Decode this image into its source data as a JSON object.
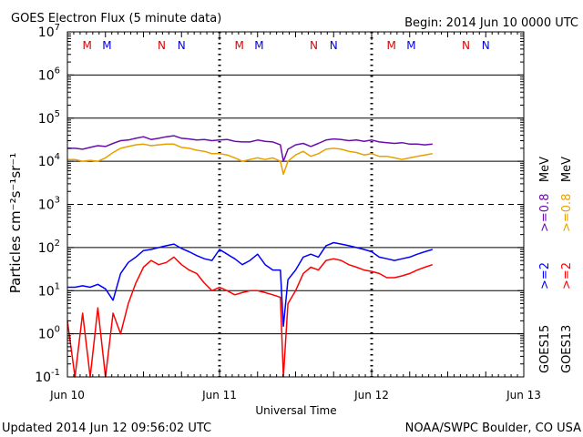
{
  "chart_data": {
    "type": "line",
    "title": "GOES Electron Flux (5 minute data)",
    "begin_label": "Begin: 2014 Jun 10 0000 UTC",
    "xlabel": "Universal Time",
    "ylabel": "Particles cm⁻²s⁻¹sr⁻¹",
    "x_ticks": [
      "Jun 10",
      "Jun 11",
      "Jun 12",
      "Jun 13"
    ],
    "y_scale": "log",
    "ylim": [
      0.1,
      10000000
    ],
    "y_tick_labels": [
      {
        "base": "10",
        "exp": "-1"
      },
      {
        "base": "10",
        "exp": "0"
      },
      {
        "base": "10",
        "exp": "1"
      },
      {
        "base": "10",
        "exp": "2"
      },
      {
        "base": "10",
        "exp": "3"
      },
      {
        "base": "10",
        "exp": "4"
      },
      {
        "base": "10",
        "exp": "5"
      },
      {
        "base": "10",
        "exp": "6"
      },
      {
        "base": "10",
        "exp": "7"
      }
    ],
    "markers": [
      {
        "label": "M",
        "day": 0.13,
        "color": "#e00000"
      },
      {
        "label": "M",
        "day": 0.26,
        "color": "#0000e0"
      },
      {
        "label": "N",
        "day": 0.62,
        "color": "#e00000"
      },
      {
        "label": "N",
        "day": 0.75,
        "color": "#0000e0"
      },
      {
        "label": "M",
        "day": 1.13,
        "color": "#e00000"
      },
      {
        "label": "M",
        "day": 1.26,
        "color": "#0000e0"
      },
      {
        "label": "N",
        "day": 1.62,
        "color": "#e00000"
      },
      {
        "label": "N",
        "day": 1.75,
        "color": "#0000e0"
      },
      {
        "label": "M",
        "day": 2.13,
        "color": "#e00000"
      },
      {
        "label": "M",
        "day": 2.26,
        "color": "#0000e0"
      },
      {
        "label": "N",
        "day": 2.62,
        "color": "#e00000"
      },
      {
        "label": "N",
        "day": 2.75,
        "color": "#0000e0"
      }
    ],
    "legend": {
      "placement": "right",
      "units": "MeV",
      "goes15": "GOES15",
      "goes13": "GOES13",
      "entries": [
        {
          "label": ">=0.8",
          "color": "#6a0dad",
          "group": "high"
        },
        {
          "label": ">=0.8",
          "color": "#e8a000",
          "group": "high"
        },
        {
          "label": ">=2",
          "color": "#0000ff",
          "group": "low"
        },
        {
          "label": ">=2",
          "color": "#ff0000",
          "group": "low"
        }
      ]
    },
    "series": [
      {
        "name": "GOES15 >=0.8 MeV",
        "color": "#6a0dad",
        "x": [
          0.0,
          0.05,
          0.1,
          0.15,
          0.2,
          0.25,
          0.3,
          0.35,
          0.4,
          0.45,
          0.5,
          0.55,
          0.6,
          0.65,
          0.7,
          0.75,
          0.8,
          0.85,
          0.9,
          0.95,
          1.0,
          1.05,
          1.1,
          1.15,
          1.2,
          1.25,
          1.3,
          1.35,
          1.4,
          1.42,
          1.45,
          1.5,
          1.55,
          1.6,
          1.65,
          1.7,
          1.75,
          1.8,
          1.85,
          1.9,
          1.95,
          2.0,
          2.05,
          2.1,
          2.15,
          2.2,
          2.25,
          2.3,
          2.35,
          2.4
        ],
        "y": [
          20000,
          20000,
          19000,
          21000,
          23000,
          22000,
          26000,
          30000,
          31000,
          34000,
          37000,
          32000,
          34000,
          37000,
          39000,
          34000,
          33000,
          31000,
          32000,
          30000,
          31000,
          32000,
          29000,
          28000,
          28000,
          31000,
          29000,
          28000,
          24000,
          10000,
          19000,
          24000,
          26000,
          22000,
          26000,
          31000,
          33000,
          32000,
          30000,
          31000,
          29000,
          31000,
          28000,
          27000,
          26000,
          27000,
          25000,
          25000,
          24000,
          25000
        ]
      },
      {
        "name": "GOES13 >=0.8 MeV",
        "color": "#e8a000",
        "x": [
          0.0,
          0.05,
          0.1,
          0.15,
          0.2,
          0.25,
          0.3,
          0.35,
          0.4,
          0.45,
          0.5,
          0.55,
          0.6,
          0.65,
          0.7,
          0.75,
          0.8,
          0.85,
          0.9,
          0.95,
          1.0,
          1.05,
          1.1,
          1.15,
          1.2,
          1.25,
          1.3,
          1.35,
          1.4,
          1.42,
          1.45,
          1.5,
          1.55,
          1.6,
          1.65,
          1.7,
          1.75,
          1.8,
          1.85,
          1.9,
          1.95,
          2.0,
          2.05,
          2.1,
          2.15,
          2.2,
          2.25,
          2.3,
          2.35,
          2.4
        ],
        "y": [
          11000,
          11000,
          10000,
          10500,
          10000,
          12000,
          16000,
          20000,
          22000,
          24000,
          25000,
          23000,
          24000,
          25000,
          25000,
          21000,
          20000,
          18000,
          17000,
          15000,
          15000,
          14000,
          12000,
          10000,
          11000,
          12000,
          11000,
          12000,
          10000,
          5000,
          10000,
          14000,
          17000,
          13000,
          15000,
          19000,
          20000,
          19000,
          17000,
          16000,
          14000,
          15000,
          13000,
          13000,
          12000,
          11000,
          12000,
          13000,
          14000,
          15000
        ]
      },
      {
        "name": "GOES15 >=2 MeV",
        "color": "#0000ff",
        "x": [
          0.0,
          0.05,
          0.1,
          0.15,
          0.2,
          0.25,
          0.3,
          0.35,
          0.4,
          0.45,
          0.5,
          0.55,
          0.6,
          0.65,
          0.7,
          0.75,
          0.8,
          0.85,
          0.9,
          0.95,
          1.0,
          1.05,
          1.1,
          1.15,
          1.2,
          1.25,
          1.3,
          1.35,
          1.4,
          1.42,
          1.45,
          1.5,
          1.55,
          1.6,
          1.65,
          1.7,
          1.75,
          1.8,
          1.85,
          1.9,
          1.95,
          2.0,
          2.05,
          2.1,
          2.15,
          2.2,
          2.25,
          2.3,
          2.35,
          2.4
        ],
        "y": [
          12,
          12,
          13,
          12,
          14,
          11,
          6,
          25,
          45,
          60,
          85,
          90,
          100,
          110,
          120,
          95,
          80,
          65,
          55,
          50,
          90,
          70,
          55,
          40,
          50,
          70,
          40,
          30,
          30,
          1.5,
          18,
          30,
          60,
          70,
          60,
          110,
          130,
          120,
          110,
          100,
          90,
          80,
          60,
          55,
          50,
          55,
          60,
          70,
          80,
          90
        ]
      },
      {
        "name": "GOES13 >=2 MeV",
        "color": "#ff0000",
        "x": [
          0.0,
          0.05,
          0.1,
          0.15,
          0.2,
          0.25,
          0.3,
          0.35,
          0.4,
          0.45,
          0.5,
          0.55,
          0.6,
          0.65,
          0.7,
          0.75,
          0.8,
          0.85,
          0.9,
          0.95,
          1.0,
          1.05,
          1.1,
          1.15,
          1.2,
          1.25,
          1.3,
          1.35,
          1.4,
          1.42,
          1.45,
          1.5,
          1.55,
          1.6,
          1.65,
          1.7,
          1.75,
          1.8,
          1.85,
          1.9,
          1.95,
          2.0,
          2.05,
          2.1,
          2.15,
          2.2,
          2.25,
          2.3,
          2.35,
          2.4
        ],
        "y": [
          2,
          0.1,
          3,
          0.1,
          4,
          0.1,
          3,
          1,
          5,
          15,
          35,
          50,
          40,
          45,
          60,
          40,
          30,
          25,
          15,
          10,
          12,
          10,
          8,
          9,
          10,
          10,
          9,
          8,
          7,
          0.1,
          5,
          10,
          25,
          35,
          30,
          50,
          55,
          50,
          40,
          35,
          30,
          28,
          25,
          20,
          20,
          22,
          25,
          30,
          35,
          40
        ]
      }
    ],
    "footer_left": "Updated 2014 Jun 12 09:56:02 UTC",
    "footer_right": "NOAA/SWPC Boulder, CO USA"
  }
}
